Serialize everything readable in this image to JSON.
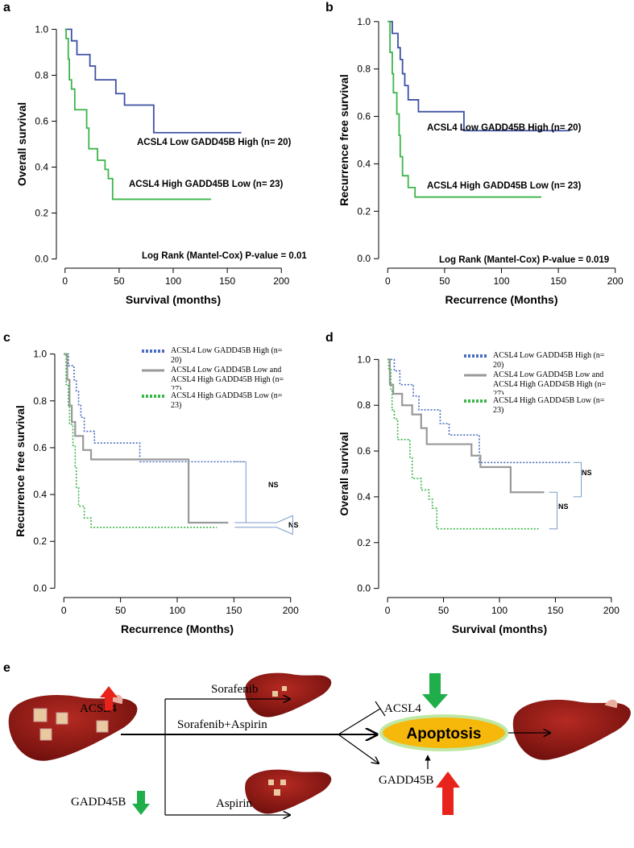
{
  "chart_data": [
    {
      "type": "step",
      "label": "a",
      "ylabel": "Overall survival",
      "xlabel": "Survival (months)",
      "xlim": [
        -8,
        208
      ],
      "ylim": [
        -0.04,
        1.04
      ],
      "xticks": [
        0,
        50,
        100,
        150,
        200
      ],
      "yticks": [
        {
          "value": 0,
          "label": "0.0"
        },
        {
          "value": 0.2,
          "label": "0.2"
        },
        {
          "value": 0.4,
          "label": "0.4"
        },
        {
          "value": 0.6,
          "label": "0.6"
        },
        {
          "value": 0.8,
          "label": "0.8"
        },
        {
          "value": 1,
          "label": "1.0"
        }
      ],
      "annotations": [
        "Log Rank (Mantel-Cox) P-value = 0.01"
      ],
      "series": [
        {
          "name": "ACSL4 Low GADD45B High (n= 20)",
          "color": "#3f51a3",
          "linestyle": "solid",
          "x": [
            0,
            6,
            11,
            23,
            28,
            47,
            55,
            82,
            163
          ],
          "values": [
            1,
            0.95,
            0.89,
            0.84,
            0.78,
            0.72,
            0.67,
            0.55,
            0.55
          ]
        },
        {
          "name": "ACSL4 High GADD45B Low (n= 23)",
          "color": "#3cb54a",
          "linestyle": "solid",
          "x": [
            0,
            1,
            3,
            4,
            6,
            9,
            20,
            22,
            30,
            37,
            40,
            44,
            135
          ],
          "values": [
            1,
            0.96,
            0.87,
            0.78,
            0.74,
            0.65,
            0.57,
            0.48,
            0.43,
            0.39,
            0.35,
            0.26,
            0.26
          ]
        }
      ]
    },
    {
      "type": "step",
      "label": "b",
      "ylabel": "Recurrence free survival",
      "xlabel": "Recurrence (Months)",
      "xlim": [
        -8,
        208
      ],
      "ylim": [
        -0.04,
        1.04
      ],
      "xticks": [
        0,
        50,
        100,
        150,
        200
      ],
      "yticks": [
        {
          "value": 0,
          "label": "0.0"
        },
        {
          "value": 0.2,
          "label": "0.2"
        },
        {
          "value": 0.4,
          "label": "0.4"
        },
        {
          "value": 0.6,
          "label": "0.6"
        },
        {
          "value": 0.8,
          "label": "0.8"
        },
        {
          "value": 1,
          "label": "1.0"
        }
      ],
      "annotations": [
        "Log Rank (Mantel-Cox) P-value = 0.019"
      ],
      "series": [
        {
          "name": "ACSL4 Low GADD45B High (n= 20)",
          "color": "#3f51a3",
          "linestyle": "solid",
          "x": [
            0,
            4,
            9,
            11,
            13,
            15,
            18,
            27,
            67,
            160
          ],
          "values": [
            1,
            0.95,
            0.89,
            0.84,
            0.78,
            0.73,
            0.67,
            0.62,
            0.54,
            0.54
          ]
        },
        {
          "name": "ACSL4 High GADD45B Low (n= 23)",
          "color": "#3cb54a",
          "linestyle": "solid",
          "x": [
            0,
            2,
            4,
            5,
            8,
            10,
            11,
            13,
            18,
            24,
            135
          ],
          "values": [
            1,
            0.87,
            0.78,
            0.7,
            0.61,
            0.52,
            0.43,
            0.35,
            0.3,
            0.26,
            0.26
          ]
        }
      ]
    },
    {
      "type": "step",
      "label": "c",
      "ylabel": "Recurrence free survival",
      "xlabel": "Recurrence (Months)",
      "xlim": [
        -8,
        208
      ],
      "ylim": [
        -0.04,
        1.04
      ],
      "xticks": [
        0,
        50,
        100,
        150,
        200
      ],
      "yticks": [
        {
          "value": 0,
          "label": "0.0"
        },
        {
          "value": 0.2,
          "label": "0.2"
        },
        {
          "value": 0.4,
          "label": "0.4"
        },
        {
          "value": 0.6,
          "label": "0.6"
        },
        {
          "value": 0.8,
          "label": "0.8"
        },
        {
          "value": 1,
          "label": "1.0"
        }
      ],
      "annotations": [
        "NS",
        "NS"
      ],
      "series": [
        {
          "name": "ACSL4 Low GADD45B High (n= 20)",
          "color": "#4a6cc0",
          "linestyle": "dotted",
          "x": [
            0,
            4,
            9,
            11,
            13,
            15,
            18,
            27,
            67,
            160
          ],
          "values": [
            1,
            0.95,
            0.89,
            0.84,
            0.78,
            0.73,
            0.67,
            0.62,
            0.54,
            0.54
          ]
        },
        {
          "name": "ACSL4 Low GADD45B Low and ACSL4 High GADD45B High (n= 27)",
          "color": "#999999",
          "linestyle": "solid",
          "x": [
            0,
            3,
            5,
            7,
            10,
            17,
            24,
            110,
            145
          ],
          "values": [
            1,
            0.89,
            0.78,
            0.71,
            0.65,
            0.59,
            0.55,
            0.28,
            0.28
          ]
        },
        {
          "name": "ACSL4 High GADD45B Low (n= 23)",
          "color": "#3cb54a",
          "linestyle": "dotted",
          "x": [
            0,
            2,
            4,
            5,
            8,
            10,
            11,
            13,
            18,
            24,
            135
          ],
          "values": [
            1,
            0.87,
            0.78,
            0.7,
            0.61,
            0.52,
            0.43,
            0.35,
            0.3,
            0.26,
            0.26
          ]
        }
      ]
    },
    {
      "type": "step",
      "label": "d",
      "ylabel": "Overall survival",
      "xlabel": "Survival (months)",
      "xlim": [
        -8,
        208
      ],
      "ylim": [
        -0.04,
        1.04
      ],
      "xticks": [
        0,
        50,
        100,
        150,
        200
      ],
      "yticks": [
        {
          "value": 0,
          "label": "0.0"
        },
        {
          "value": 0.2,
          "label": "0.2"
        },
        {
          "value": 0.4,
          "label": "0.4"
        },
        {
          "value": 0.6,
          "label": "0.6"
        },
        {
          "value": 0.8,
          "label": "0.8"
        },
        {
          "value": 1,
          "label": "1.0"
        }
      ],
      "annotations": [
        "NS",
        "NS"
      ],
      "series": [
        {
          "name": "ACSL4 Low GADD45B High (n= 20)",
          "color": "#4a6cc0",
          "linestyle": "dotted",
          "x": [
            0,
            6,
            11,
            23,
            28,
            47,
            55,
            82,
            163
          ],
          "values": [
            1,
            0.95,
            0.89,
            0.84,
            0.78,
            0.72,
            0.67,
            0.55,
            0.55
          ]
        },
        {
          "name": "ACSL4 Low GADD45B Low and ACSL4 High GADD45B High (n= 27)",
          "color": "#999999",
          "linestyle": "solid",
          "x": [
            0,
            2,
            5,
            13,
            22,
            30,
            35,
            75,
            83,
            110,
            140
          ],
          "values": [
            1,
            0.89,
            0.85,
            0.8,
            0.76,
            0.7,
            0.63,
            0.58,
            0.53,
            0.42,
            0.42
          ]
        },
        {
          "name": "ACSL4 High GADD45B Low (n= 23)",
          "color": "#3cb54a",
          "linestyle": "dotted",
          "x": [
            0,
            1,
            3,
            4,
            6,
            9,
            20,
            22,
            30,
            37,
            40,
            44,
            135
          ],
          "values": [
            1,
            0.96,
            0.87,
            0.78,
            0.74,
            0.65,
            0.57,
            0.48,
            0.43,
            0.39,
            0.35,
            0.26,
            0.26
          ]
        }
      ]
    }
  ],
  "diagram": {
    "label": "e",
    "left_markers": [
      "ACSL4",
      "GADD45B"
    ],
    "treatments": [
      "Sorafenib",
      "Sorafenib+Aspirin",
      "Aspirin"
    ],
    "targets": [
      "ACSL4",
      "GADD45B"
    ],
    "outcome": "Apoptosis"
  }
}
